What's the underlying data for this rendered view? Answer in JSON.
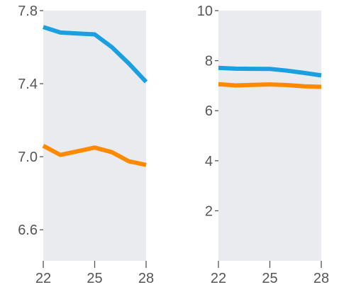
{
  "chart_data": [
    {
      "type": "line",
      "x": [
        22,
        23,
        24,
        25,
        26,
        27,
        28
      ],
      "xlim": [
        22,
        28
      ],
      "xticks": [
        "22",
        "25",
        "28"
      ],
      "ylim": [
        6.43,
        7.8
      ],
      "yticks": [
        "6.6",
        "7.0",
        "7.4",
        "7.8"
      ],
      "series": [
        {
          "color": "#1a9fe0",
          "values": [
            7.71,
            7.68,
            7.675,
            7.67,
            7.6,
            7.51,
            7.41
          ]
        },
        {
          "color": "#ff8a00",
          "values": [
            7.06,
            7.01,
            7.03,
            7.05,
            7.025,
            6.975,
            6.955
          ]
        }
      ]
    },
    {
      "type": "line",
      "x": [
        22,
        23,
        24,
        25,
        26,
        27,
        28
      ],
      "xlim": [
        22,
        28
      ],
      "xticks": [
        "22",
        "25",
        "28"
      ],
      "ylim": [
        0,
        10
      ],
      "yticks": [
        "2",
        "4",
        "6",
        "8",
        "10"
      ],
      "series": [
        {
          "color": "#1a9fe0",
          "values": [
            7.71,
            7.68,
            7.675,
            7.67,
            7.6,
            7.51,
            7.41
          ]
        },
        {
          "color": "#ff8a00",
          "values": [
            7.06,
            7.01,
            7.03,
            7.05,
            7.025,
            6.975,
            6.955
          ]
        }
      ]
    }
  ]
}
